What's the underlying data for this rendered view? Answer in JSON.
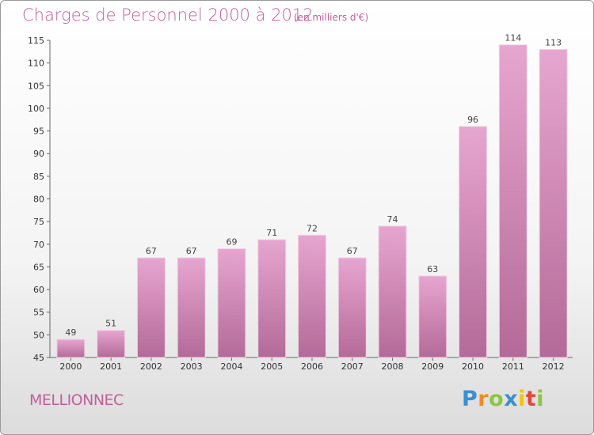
{
  "header": {
    "title": "Charges de Personnel 2000 à 2012",
    "subtitle": "(en milliers d'€)"
  },
  "footer": {
    "commune": "MELLIONNEC",
    "logo_letters": [
      "P",
      "r",
      "o",
      "x",
      "i",
      "t",
      "i"
    ]
  },
  "colors": {
    "bar_top": "#e6a6cf",
    "bar_bottom": "#b46a98",
    "text_accent": "#c0609a"
  },
  "chart_data": {
    "type": "bar",
    "title": "Charges de Personnel 2000 à 2012",
    "subtitle": "(en milliers d'€)",
    "categories": [
      "2000",
      "2001",
      "2002",
      "2003",
      "2004",
      "2005",
      "2006",
      "2007",
      "2008",
      "2009",
      "2010",
      "2011",
      "2012"
    ],
    "values": [
      49,
      51,
      67,
      67,
      69,
      71,
      72,
      67,
      74,
      63,
      96,
      114,
      113
    ],
    "ylim": [
      45,
      115
    ],
    "yticks": [
      45,
      50,
      55,
      60,
      65,
      70,
      75,
      80,
      85,
      90,
      95,
      100,
      105,
      110,
      115
    ],
    "grid": false,
    "legend": "none"
  }
}
